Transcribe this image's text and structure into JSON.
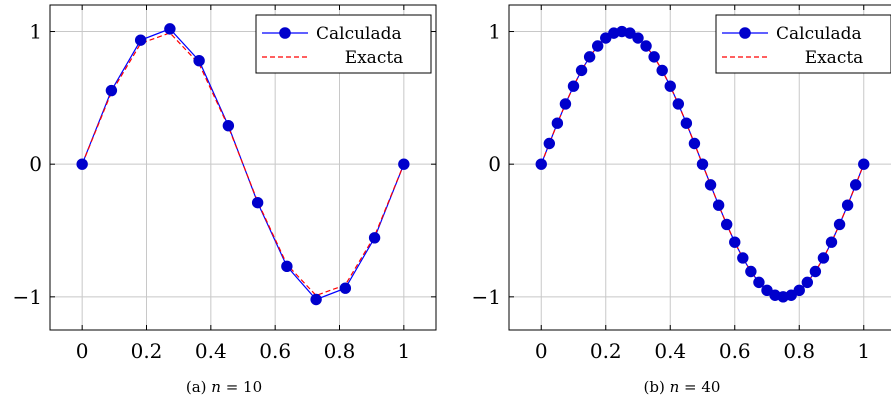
{
  "chart_data": [
    {
      "type": "line",
      "caption": {
        "prefix": "(a)",
        "var": "n",
        "eq": " = 10"
      },
      "xlim": [
        -0.1,
        1.1
      ],
      "ylim": [
        -1.25,
        1.2
      ],
      "xticks": [
        0,
        0.2,
        0.4,
        0.6,
        0.8,
        1
      ],
      "xtick_labels": [
        "0",
        "0.2",
        "0.4",
        "0.6",
        "0.8",
        "1"
      ],
      "yticks": [
        -1,
        0,
        1
      ],
      "ytick_labels": [
        "−1",
        "0",
        "1"
      ],
      "grid": true,
      "legend_position": "top-right",
      "series": [
        {
          "name": "Calculada",
          "color": "#0000ff",
          "marker_color": "#0000cc",
          "style": "solid-with-markers",
          "x": [
            0,
            0.0909,
            0.1818,
            0.2727,
            0.3636,
            0.4545,
            0.5455,
            0.6364,
            0.7273,
            0.8182,
            0.9091,
            1.0
          ],
          "y": [
            0,
            0.555,
            0.935,
            1.02,
            0.78,
            0.29,
            -0.29,
            -0.77,
            -1.02,
            -0.935,
            -0.555,
            0
          ]
        },
        {
          "name": "Exacta",
          "color": "#ff0000",
          "style": "dashed",
          "function": "sin(2*pi*x)",
          "x": [
            0,
            0.0909,
            0.1818,
            0.2727,
            0.3636,
            0.4545,
            0.5455,
            0.6364,
            0.7273,
            0.8182,
            0.9091,
            1.0
          ],
          "y": [
            0,
            0.541,
            0.91,
            0.99,
            0.756,
            0.282,
            -0.282,
            -0.756,
            -0.99,
            -0.91,
            -0.541,
            0
          ]
        }
      ]
    },
    {
      "type": "line",
      "caption": {
        "prefix": "(b)",
        "var": "n",
        "eq": " = 40"
      },
      "xlim": [
        -0.1,
        1.1
      ],
      "ylim": [
        -1.25,
        1.2
      ],
      "xticks": [
        0,
        0.2,
        0.4,
        0.6,
        0.8,
        1
      ],
      "xtick_labels": [
        "0",
        "0.2",
        "0.4",
        "0.6",
        "0.8",
        "1"
      ],
      "yticks": [
        -1,
        0,
        1
      ],
      "ytick_labels": [
        "−1",
        "0",
        "1"
      ],
      "grid": true,
      "legend_position": "top-right",
      "series": [
        {
          "name": "Calculada",
          "color": "#0000ff",
          "marker_color": "#0000cc",
          "style": "solid-with-markers",
          "x": [
            0,
            0.025,
            0.05,
            0.075,
            0.1,
            0.125,
            0.15,
            0.175,
            0.2,
            0.225,
            0.25,
            0.275,
            0.3,
            0.325,
            0.35,
            0.375,
            0.4,
            0.425,
            0.45,
            0.475,
            0.5,
            0.525,
            0.55,
            0.575,
            0.6,
            0.625,
            0.65,
            0.675,
            0.7,
            0.725,
            0.75,
            0.775,
            0.8,
            0.825,
            0.85,
            0.875,
            0.9,
            0.925,
            0.95,
            0.975,
            1.0
          ],
          "y": [
            0,
            0.156,
            0.309,
            0.454,
            0.588,
            0.707,
            0.809,
            0.891,
            0.951,
            0.988,
            1.0,
            0.988,
            0.951,
            0.891,
            0.809,
            0.707,
            0.588,
            0.454,
            0.309,
            0.156,
            0,
            -0.156,
            -0.309,
            -0.454,
            -0.588,
            -0.707,
            -0.809,
            -0.891,
            -0.951,
            -0.988,
            -1.0,
            -0.988,
            -0.951,
            -0.891,
            -0.809,
            -0.707,
            -0.588,
            -0.454,
            -0.309,
            -0.156,
            0
          ]
        },
        {
          "name": "Exacta",
          "color": "#ff0000",
          "style": "dashed",
          "function": "sin(2*pi*x)",
          "x": [
            0,
            0.025,
            0.05,
            0.075,
            0.1,
            0.125,
            0.15,
            0.175,
            0.2,
            0.225,
            0.25,
            0.275,
            0.3,
            0.325,
            0.35,
            0.375,
            0.4,
            0.425,
            0.45,
            0.475,
            0.5,
            0.525,
            0.55,
            0.575,
            0.6,
            0.625,
            0.65,
            0.675,
            0.7,
            0.725,
            0.75,
            0.775,
            0.8,
            0.825,
            0.85,
            0.875,
            0.9,
            0.925,
            0.95,
            0.975,
            1.0
          ],
          "y": [
            0,
            0.156,
            0.309,
            0.454,
            0.588,
            0.707,
            0.809,
            0.891,
            0.951,
            0.988,
            1.0,
            0.988,
            0.951,
            0.891,
            0.809,
            0.707,
            0.588,
            0.454,
            0.309,
            0.156,
            0,
            -0.156,
            -0.309,
            -0.454,
            -0.588,
            -0.707,
            -0.809,
            -0.891,
            -0.951,
            -0.988,
            -1.0,
            -0.988,
            -0.951,
            -0.891,
            -0.809,
            -0.707,
            -0.588,
            -0.454,
            -0.309,
            -0.156,
            0
          ]
        }
      ]
    }
  ]
}
